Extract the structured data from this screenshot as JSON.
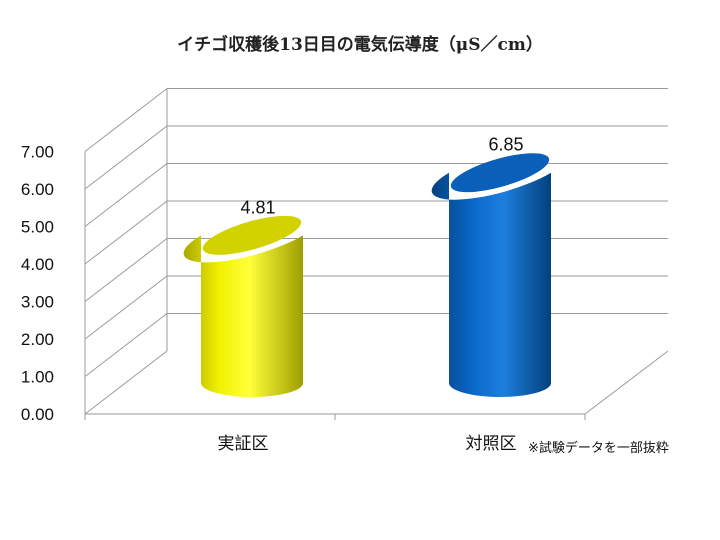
{
  "chart_data": {
    "type": "bar",
    "style": "3d-cylinder",
    "title": "イチゴ収穫後13日目の電気伝導度（μS／cm）",
    "categories": [
      "実証区",
      "対照区"
    ],
    "values": [
      4.81,
      6.85
    ],
    "value_labels": [
      "4.81",
      "6.85"
    ],
    "colors": [
      "#E6E600",
      "#0A68C8"
    ],
    "ylim": [
      0,
      7
    ],
    "yticks": [
      "0.00",
      "1.00",
      "2.00",
      "3.00",
      "4.00",
      "5.00",
      "6.00",
      "7.00"
    ],
    "grid": true,
    "legend": "none",
    "xlabel": "",
    "ylabel": ""
  },
  "footnote": "※試験データを一部抜粋"
}
